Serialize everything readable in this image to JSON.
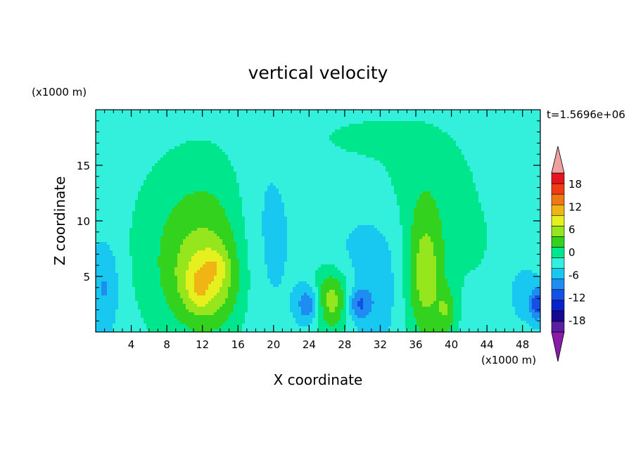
{
  "chart_data": {
    "type": "heatmap",
    "title": "vertical velocity",
    "xlabel": "X coordinate",
    "ylabel": "Z coordinate",
    "x_unit_label": "(x1000 m)",
    "y_unit_label": "(x1000 m)",
    "time_label": "t=1.5696e+06",
    "xlim": [
      0,
      50
    ],
    "ylim": [
      0,
      20
    ],
    "x_ticks": [
      "4",
      "8",
      "12",
      "16",
      "20",
      "24",
      "28",
      "32",
      "36",
      "40",
      "44",
      "48"
    ],
    "x_tick_values": [
      4,
      8,
      12,
      16,
      20,
      24,
      28,
      32,
      36,
      40,
      44,
      48
    ],
    "y_ticks": [
      "5",
      "10",
      "15"
    ],
    "y_tick_values": [
      5,
      10,
      15
    ],
    "background_value": -1.5,
    "features": [
      {
        "x": 12,
        "z": 5.5,
        "sx": 4.5,
        "sz": 5.0,
        "amp": 6
      },
      {
        "x": 12.5,
        "z": 4.5,
        "sx": 2.2,
        "sz": 2.4,
        "amp": 6
      },
      {
        "x": 11.5,
        "z": 3.8,
        "sx": 0.8,
        "sz": 1.2,
        "amp": 3
      },
      {
        "x": 13.5,
        "z": 6.0,
        "sx": 0.9,
        "sz": 1.0,
        "amp": 2.5
      },
      {
        "x": 12,
        "z": 11,
        "sx": 5.0,
        "sz": 5.0,
        "amp": 2.5
      },
      {
        "x": 26.5,
        "z": 2.8,
        "sx": 1.7,
        "sz": 2.0,
        "amp": 10
      },
      {
        "x": 37,
        "z": 5.0,
        "sx": 1.6,
        "sz": 4.5,
        "amp": 9
      },
      {
        "x": 36.5,
        "z": 14,
        "sx": 5.0,
        "sz": 4.0,
        "amp": 2.5
      },
      {
        "x": 39.5,
        "z": 1.8,
        "sx": 0.8,
        "sz": 1.5,
        "amp": 5
      },
      {
        "x": 30,
        "z": 17.5,
        "sx": 4.0,
        "sz": 1.2,
        "amp": 2.0
      },
      {
        "x": 44,
        "z": 6.5,
        "sx": 5.0,
        "sz": 4.0,
        "amp": 1.5
      },
      {
        "x": 19,
        "z": 8,
        "sx": 2.5,
        "sz": 6.0,
        "amp": -4
      },
      {
        "x": 31,
        "z": 5,
        "sx": 3.0,
        "sz": 5.0,
        "amp": -3.5
      },
      {
        "x": 24,
        "z": 2.5,
        "sx": 1.0,
        "sz": 1.3,
        "amp": -9
      },
      {
        "x": 29.5,
        "z": 2.5,
        "sx": 1.0,
        "sz": 1.0,
        "amp": -7
      },
      {
        "x": 1,
        "z": 4,
        "sx": 1.2,
        "sz": 3.0,
        "amp": -5
      },
      {
        "x": 48,
        "z": 4,
        "sx": 2.0,
        "sz": 3.0,
        "amp": -3
      },
      {
        "x": 49.7,
        "z": 2.5,
        "sx": 0.6,
        "sz": 1.0,
        "amp": -9
      }
    ],
    "colorbar": {
      "labels": [
        "18",
        "12",
        "6",
        "0",
        "-6",
        "-12",
        "-18"
      ],
      "label_values": [
        18,
        12,
        6,
        0,
        -6,
        -12,
        -18
      ],
      "levels": [
        -21,
        -18,
        -15,
        -12,
        -9,
        -6,
        -3,
        0,
        3,
        6,
        9,
        12,
        15,
        18,
        21
      ],
      "colors": [
        "#5a1fa0",
        "#160890",
        "#0a20c8",
        "#1450e6",
        "#1e8cf0",
        "#18c8f0",
        "#32f0dc",
        "#00e68c",
        "#32d21e",
        "#96e61e",
        "#e6f01e",
        "#f0b414",
        "#f07814",
        "#f03c14",
        "#e6141e"
      ],
      "under_color": "#8a1aa8",
      "over_color": "#f0a0a0"
    }
  }
}
